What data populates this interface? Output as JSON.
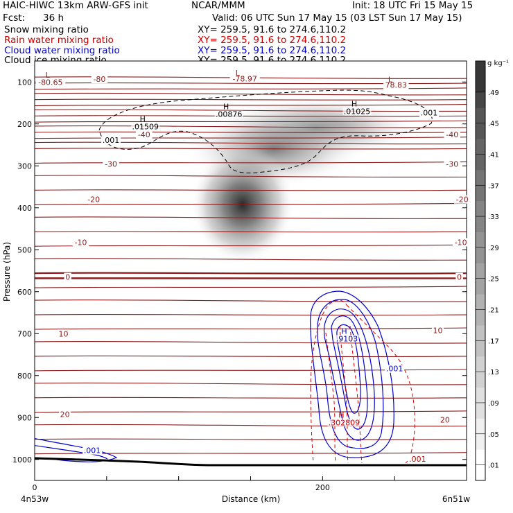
{
  "header": {
    "model": "HAIC-HIWC 13km ARW-GFS init",
    "org": "NCAR/MMM",
    "init": "Init: 18 UTC Fri 15 May 15",
    "fcst_label": "Fcst:",
    "fcst_value": "36 h",
    "valid": "Valid: 06 UTC Sun 17 May 15 (03 LST Sun 17 May 15)"
  },
  "fields": [
    {
      "name": "Snow mixing ratio",
      "xy": "XY= 259.5, 91.6 to 274.6,110.2",
      "color": "#000000"
    },
    {
      "name": "Rain water mixing ratio",
      "xy": "XY= 259.5, 91.6 to 274.6,110.2",
      "color": "#cc0000"
    },
    {
      "name": "Cloud water mixing ratio",
      "xy": "XY= 259.5, 91.6 to 274.6,110.2",
      "color": "#0000cc"
    },
    {
      "name": "Cloud ice mixing ratio",
      "xy": "XY= 259.5, 91.6 to 274.6,110.2",
      "color": "#000000"
    }
  ],
  "chart_data": {
    "type": "heatmap",
    "xlabel": "Distance (km)",
    "ylabel": "Pressure (hPa)",
    "xlim": [
      0,
      300
    ],
    "ylim": [
      1050,
      50
    ],
    "x_ticks": [
      0,
      200
    ],
    "y_ticks": [
      100,
      200,
      300,
      400,
      500,
      600,
      700,
      800,
      900,
      1000
    ],
    "x_end_labels": [
      "4n53w",
      "6n51w"
    ],
    "colorbar": {
      "unit": "g kg⁻¹",
      "levels": [
        ".01",
        ".05",
        ".09",
        ".13",
        ".17",
        ".21",
        ".25",
        ".29",
        ".33",
        ".37",
        ".41",
        ".45",
        ".49"
      ]
    },
    "snow_shading": {
      "max_center_km": 150,
      "max_center_hpa": 370,
      "secondary_center_km": 225,
      "secondary_center_hpa": 230
    },
    "temperature_labels": [
      {
        "text": "-80.65",
        "x_km": 11,
        "p": 105
      },
      {
        "text": "-80",
        "x_km": 45,
        "p": 98
      },
      {
        "text": "-78.97",
        "x_km": 146,
        "p": 97
      },
      {
        "text": "78.83",
        "x_km": 251,
        "p": 112
      },
      {
        "text": "-40",
        "x_km": 76,
        "p": 230
      },
      {
        "text": "-40",
        "x_km": 290,
        "p": 230
      },
      {
        "text": "-30",
        "x_km": 53,
        "p": 300
      },
      {
        "text": "-30",
        "x_km": 290,
        "p": 300
      },
      {
        "text": "-20",
        "x_km": 41,
        "p": 385
      },
      {
        "text": "-20",
        "x_km": 297,
        "p": 385
      },
      {
        "text": "-10",
        "x_km": 32,
        "p": 487
      },
      {
        "text": "-10",
        "x_km": 296,
        "p": 487
      },
      {
        "text": "0",
        "x_km": 23,
        "p": 570
      },
      {
        "text": "0",
        "x_km": 295,
        "p": 570
      },
      {
        "text": "10",
        "x_km": 20,
        "p": 705
      },
      {
        "text": "10",
        "x_km": 280,
        "p": 697
      },
      {
        "text": "20",
        "x_km": 21,
        "p": 897
      },
      {
        "text": "20",
        "x_km": 285,
        "p": 910
      }
    ],
    "extrema_labels": [
      {
        "mark": "L",
        "x_km": 9,
        "p": 90,
        "color": "#8b1a1a"
      },
      {
        "mark": "L",
        "x_km": 141,
        "p": 85,
        "color": "#8b1a1a"
      },
      {
        "mark": "L",
        "x_km": 247,
        "p": 100,
        "color": "#8b1a1a"
      },
      {
        "mark": "H",
        "value": ".01509",
        "x_km": 75,
        "p": 195,
        "color": "#000000"
      },
      {
        "mark": "H",
        "value": ".00876",
        "x_km": 133,
        "p": 165,
        "color": "#000000"
      },
      {
        "mark": "H",
        "value": ".01025",
        "x_km": 222,
        "p": 158,
        "color": "#000000"
      },
      {
        "mark": "H",
        "value": ".9103",
        "x_km": 215,
        "p": 700,
        "color": "#0000cc"
      },
      {
        "mark": "H",
        "value": ".302809",
        "x_km": 213,
        "p": 900,
        "color": "#cc0000"
      }
    ],
    "contour_labels": [
      {
        "text": ".001",
        "x_km": 53,
        "p": 245,
        "color": "#000000"
      },
      {
        "text": ".001",
        "x_km": 274,
        "p": 180,
        "color": "#000000"
      },
      {
        "text": ".001",
        "x_km": 250,
        "p": 790,
        "color": "#0000cc"
      },
      {
        "text": ".001",
        "x_km": 40,
        "p": 985,
        "color": "#0000cc"
      },
      {
        "text": ".001",
        "x_km": 266,
        "p": 1005,
        "color": "#cc0000"
      }
    ]
  }
}
